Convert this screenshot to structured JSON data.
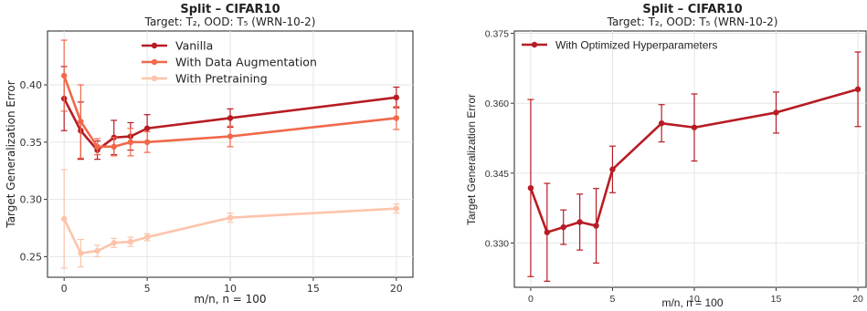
{
  "chart_data": [
    {
      "type": "line",
      "title": "Split – CIFAR10",
      "subtitle": "Target: T₂, OOD: T₅ (WRN-10-2)",
      "xlabel": "m/n, n = 100",
      "ylabel": "Target Generalization Error",
      "xlim": [
        -1,
        21
      ],
      "ylim": [
        0.232,
        0.447
      ],
      "xticks": [
        0,
        5,
        10,
        15,
        20
      ],
      "yticks": [
        0.25,
        0.3,
        0.35,
        0.4
      ],
      "ytick_labels": [
        "0.25",
        "0.30",
        "0.35",
        "0.40"
      ],
      "grid": true,
      "legend": "top-center",
      "x": [
        0,
        1,
        2,
        3,
        4,
        5,
        10,
        20
      ],
      "series": [
        {
          "name": "Vanilla",
          "color": "#b71c24",
          "values": [
            0.388,
            0.36,
            0.343,
            0.354,
            0.355,
            0.362,
            0.371,
            0.389
          ],
          "err": [
            0.028,
            0.025,
            0.008,
            0.015,
            0.012,
            0.012,
            0.008,
            0.009
          ]
        },
        {
          "name": "With Data Augmentation",
          "color": "#f0694a",
          "values": [
            0.408,
            0.368,
            0.346,
            0.346,
            0.35,
            0.35,
            0.355,
            0.371
          ],
          "err": [
            0.031,
            0.032,
            0.007,
            0.008,
            0.012,
            0.009,
            0.009,
            0.01
          ]
        },
        {
          "name": "With Pretraining",
          "color": "#fcc4ab",
          "values": [
            0.283,
            0.253,
            0.255,
            0.262,
            0.263,
            0.267,
            0.284,
            0.292
          ],
          "err": [
            0.043,
            0.012,
            0.005,
            0.004,
            0.004,
            0.003,
            0.004,
            0.004
          ]
        }
      ]
    },
    {
      "type": "line",
      "title": "Split – CIFAR10",
      "subtitle": "Target: T₂, OOD: T₅ (WRN-10-2)",
      "xlabel": "m/n, n = 100",
      "ylabel": "Target Generalization Error",
      "xlim": [
        -1,
        20.5
      ],
      "ylim": [
        0.3205,
        0.3755
      ],
      "xticks": [
        0,
        5,
        10,
        15,
        20
      ],
      "yticks": [
        0.33,
        0.345,
        0.36,
        0.375
      ],
      "ytick_labels": [
        "0.330",
        "0.345",
        "0.360",
        "0.375"
      ],
      "grid": true,
      "legend": "top-left",
      "x": [
        0,
        1,
        2,
        3,
        4,
        5,
        8,
        10,
        15,
        20
      ],
      "series": [
        {
          "name": "With Optimized Hyperparameters",
          "color": "#b71c24",
          "values": [
            0.3418,
            0.3323,
            0.3334,
            0.3345,
            0.3337,
            0.3458,
            0.3557,
            0.3548,
            0.358,
            0.363
          ],
          "err": [
            0.019,
            0.0105,
            0.0037,
            0.006,
            0.008,
            0.005,
            0.004,
            0.0072,
            0.0044,
            0.008
          ]
        }
      ]
    }
  ]
}
